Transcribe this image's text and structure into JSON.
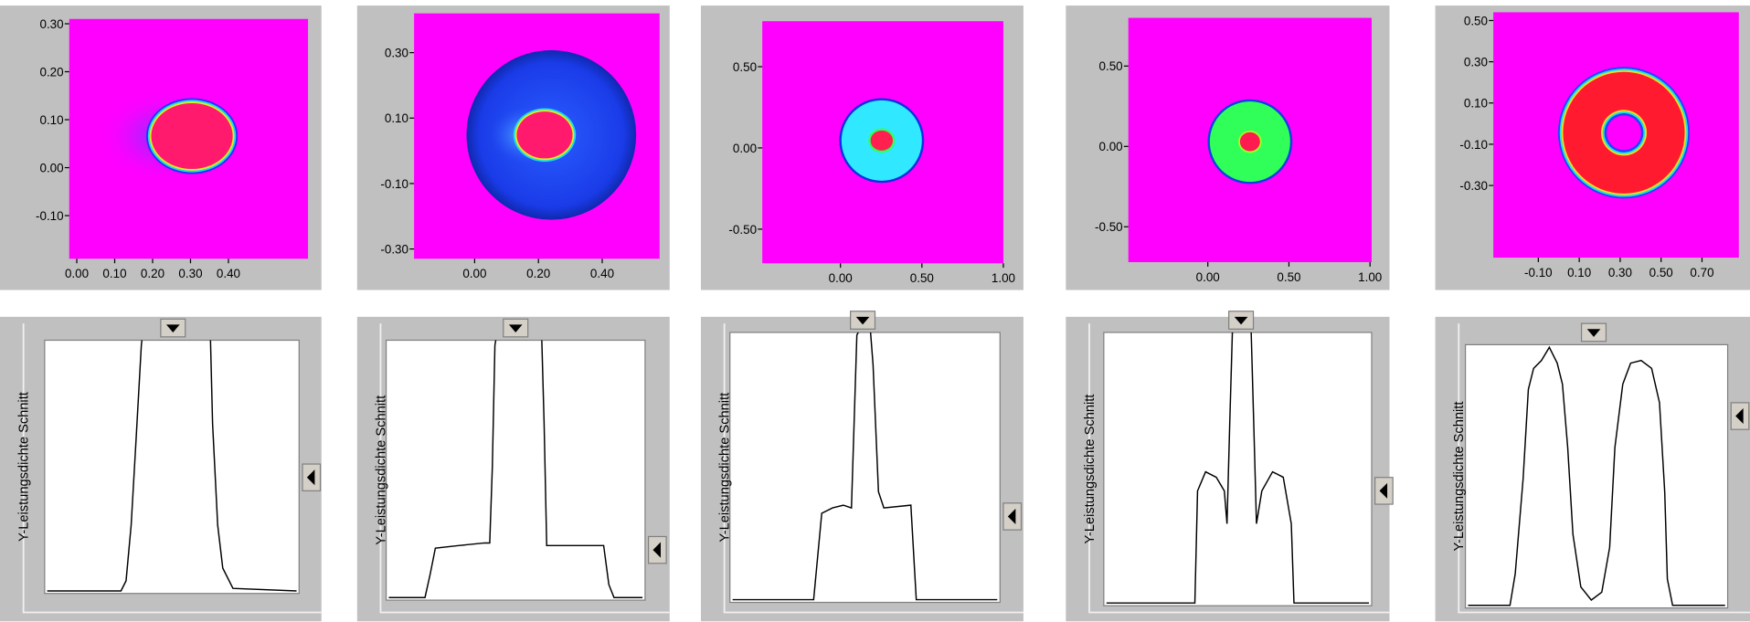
{
  "chart_data": [
    {
      "type": "heatmap",
      "xlim": [
        -0.02,
        0.61
      ],
      "ylim": [
        -0.19,
        0.31
      ],
      "xticks": [
        {
          "value": 0,
          "label": "0.00"
        },
        {
          "value": 0.1,
          "label": "0.10"
        },
        {
          "value": 0.2,
          "label": "0.20"
        },
        {
          "value": 0.3,
          "label": "0.30"
        },
        {
          "value": 0.4,
          "label": "0.40"
        }
      ],
      "yticks": [
        {
          "value": -0.1,
          "label": "-0.10"
        },
        {
          "value": 0,
          "label": "0.00"
        },
        {
          "value": 0.1,
          "label": "0.10"
        },
        {
          "value": 0.2,
          "label": "0.20"
        },
        {
          "value": 0.3,
          "label": "0.30"
        }
      ]
    },
    {
      "type": "heatmap",
      "xlim": [
        -0.19,
        0.58
      ],
      "ylim": [
        -0.33,
        0.42
      ],
      "xticks": [
        {
          "value": 0,
          "label": "0.00"
        },
        {
          "value": 0.2,
          "label": "0.20"
        },
        {
          "value": 0.4,
          "label": "0.40"
        }
      ],
      "yticks": [
        {
          "value": -0.3,
          "label": "-0.30"
        },
        {
          "value": -0.1,
          "label": "-0.10"
        },
        {
          "value": 0.1,
          "label": "0.10"
        },
        {
          "value": 0.3,
          "label": "0.30"
        }
      ]
    },
    {
      "type": "heatmap",
      "xlim": [
        -0.48,
        1.0
      ],
      "ylim": [
        -0.71,
        0.78
      ],
      "xticks": [
        {
          "value": 0,
          "label": "0.00"
        },
        {
          "value": 0.5,
          "label": "0.50"
        },
        {
          "value": 1,
          "label": "1.00"
        }
      ],
      "yticks": [
        {
          "value": -0.5,
          "label": "-0.50"
        },
        {
          "value": 0,
          "label": "0.00"
        },
        {
          "value": 0.5,
          "label": "0.50"
        }
      ]
    },
    {
      "type": "heatmap",
      "xlim": [
        -0.49,
        1.01
      ],
      "ylim": [
        -0.72,
        0.8
      ],
      "xticks": [
        {
          "value": 0,
          "label": "0.00"
        },
        {
          "value": 0.5,
          "label": "0.50"
        },
        {
          "value": 1,
          "label": "1.00"
        }
      ],
      "yticks": [
        {
          "value": -0.5,
          "label": "-0.50"
        },
        {
          "value": 0,
          "label": "0.00"
        },
        {
          "value": 0.5,
          "label": "0.50"
        }
      ]
    },
    {
      "type": "heatmap",
      "xlim": [
        -0.32,
        0.88
      ],
      "ylim": [
        -0.65,
        0.54
      ],
      "xticks": [
        {
          "value": -0.1,
          "label": "-0.10"
        },
        {
          "value": 0.1,
          "label": "0.10"
        },
        {
          "value": 0.3,
          "label": "0.30"
        },
        {
          "value": 0.5,
          "label": "0.50"
        },
        {
          "value": 0.7,
          "label": "0.70"
        }
      ],
      "yticks": [
        {
          "value": -0.3,
          "label": "-0.30"
        },
        {
          "value": -0.1,
          "label": "-0.10"
        },
        {
          "value": 0.1,
          "label": "0.10"
        },
        {
          "value": 0.3,
          "label": "0.30"
        },
        {
          "value": 0.5,
          "label": "0.50"
        }
      ]
    },
    {
      "type": "line",
      "ylabel": "Y-Leistungsdichte Schnitt",
      "color": "#000000",
      "xlim": [
        0,
        100
      ],
      "ylim": [
        0,
        100
      ],
      "x": [
        1,
        30,
        32,
        34,
        36,
        38,
        39,
        65,
        66,
        68,
        70,
        74,
        99
      ],
      "values": [
        1,
        1,
        5,
        27,
        62,
        98,
        107,
        107,
        67,
        27,
        10,
        2,
        1
      ]
    },
    {
      "type": "line",
      "ylabel": "Y-Leistungsdichte Schnitt",
      "color": "#000000",
      "xlim": [
        0,
        100
      ],
      "ylim": [
        0,
        100
      ],
      "x": [
        1,
        15,
        17,
        19,
        28,
        38,
        40,
        41,
        42,
        43,
        60,
        61,
        62,
        75,
        84,
        86,
        88,
        99
      ],
      "values": [
        1,
        1,
        10,
        20,
        21,
        22,
        22,
        51,
        98,
        104,
        104,
        68,
        21,
        21,
        21,
        6,
        1,
        1
      ]
    },
    {
      "type": "line",
      "ylabel": "Y-Leistungsdichte Schnitt",
      "color": "#000000",
      "xlim": [
        0,
        100
      ],
      "ylim": [
        0,
        100
      ],
      "x": [
        1,
        31,
        34,
        38,
        42,
        45,
        46,
        47,
        48,
        52,
        53,
        55,
        57,
        67,
        69,
        99
      ],
      "values": [
        1,
        1,
        33,
        35,
        36,
        35,
        67,
        99,
        101,
        101,
        88,
        41,
        35,
        36,
        1,
        1
      ]
    },
    {
      "type": "line",
      "ylabel": "Y-Leistungsdichte Schnitt",
      "color": "#000000",
      "xlim": [
        0,
        100
      ],
      "ylim": [
        0,
        100
      ],
      "x": [
        1,
        34,
        35,
        38,
        42,
        45,
        46,
        47,
        48,
        50,
        55,
        56,
        57,
        59,
        63,
        67,
        70,
        71,
        99
      ],
      "values": [
        1,
        1,
        42,
        49,
        47,
        42,
        30,
        66,
        100,
        101,
        101,
        66,
        30,
        42,
        49,
        47,
        30,
        1,
        1
      ]
    },
    {
      "type": "line",
      "ylabel": "Y-Leistungsdichte Schnitt",
      "color": "#000000",
      "xlim": [
        0,
        100
      ],
      "ylim": [
        0,
        100
      ],
      "x": [
        1,
        17,
        19,
        22,
        24,
        26,
        29,
        32,
        35,
        37,
        39,
        41,
        44,
        48,
        52,
        55,
        57,
        60,
        63,
        67,
        71,
        74,
        76,
        77,
        79,
        99
      ],
      "values": [
        1,
        1,
        13,
        49,
        83,
        91,
        94,
        99,
        93,
        85,
        61,
        28,
        8,
        3,
        6,
        23,
        61,
        85,
        93,
        94,
        91,
        78,
        44,
        11,
        1,
        1
      ]
    }
  ]
}
